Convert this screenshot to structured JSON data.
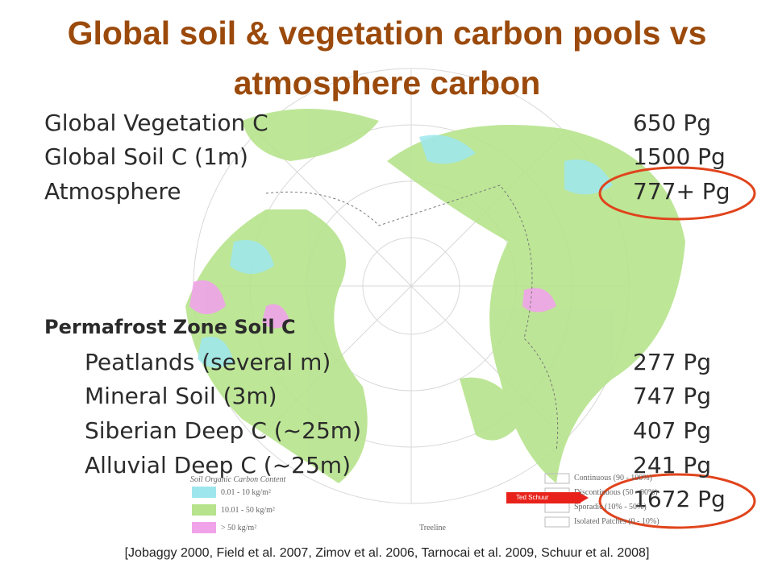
{
  "header": {
    "title": "Global soil & vegetation carbon pools  vs atmosphere carbon"
  },
  "global_pools": [
    {
      "label": "Global Vegetation C",
      "value": "650 Pg"
    },
    {
      "label": "Global Soil C (1m)",
      "value": "1500 Pg"
    },
    {
      "label": "Atmosphere",
      "value": "777+ Pg"
    }
  ],
  "permafrost": {
    "heading": "Permafrost Zone Soil C",
    "items": [
      {
        "label": "Peatlands (several m)",
        "value": "277 Pg"
      },
      {
        "label": "Mineral Soil (3m)",
        "value": "747 Pg"
      },
      {
        "label": "Siberian Deep C (~25m)",
        "value": "407 Pg"
      },
      {
        "label": "Alluvial Deep C (~25m)",
        "value": "241 Pg"
      }
    ],
    "total": "1672 Pg"
  },
  "map_legend": {
    "title": "Soil Organic Carbon Content",
    "carbon_classes": [
      "0.01 - 10 kg/m²",
      "10.01 - 50 kg/m²",
      "> 50 kg/m²"
    ],
    "treeline": "Treeline",
    "permafrost_classes": [
      "Continuous (90 - 100%)",
      "Discontinuous (50 - 90%)",
      "Sporadic (10% - 50%)",
      "Isolated Patches (0 - 10%)"
    ]
  },
  "pointer_label": "Ted Schuur",
  "citation": "[Jobaggy 2000, Field et al. 2007, Zimov et al. 2006, Tarnocai et al. 2009, Schuur et al. 2008]"
}
